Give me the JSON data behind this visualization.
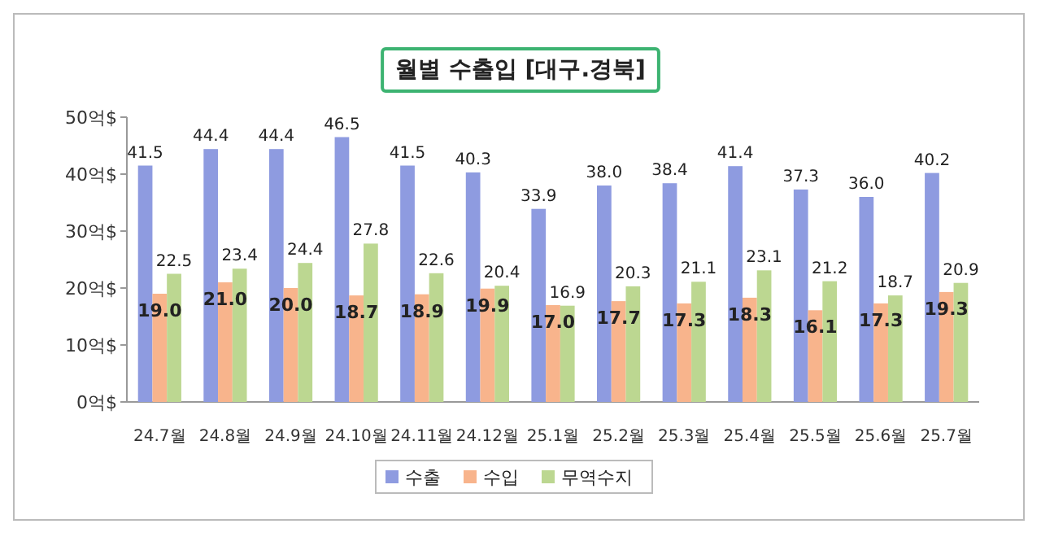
{
  "chart_data": {
    "type": "bar",
    "title": "월별 수출입 [대구.경북]",
    "categories": [
      "24.7월",
      "24.8월",
      "24.9월",
      "24.10월",
      "24.11월",
      "24.12월",
      "25.1월",
      "25.2월",
      "25.3월",
      "25.4월",
      "25.5월",
      "25.6월",
      "25.7월"
    ],
    "series": [
      {
        "name": "수출",
        "color": "#8e9be0",
        "values": [
          41.5,
          44.4,
          44.4,
          46.5,
          41.5,
          40.3,
          33.9,
          38.0,
          38.4,
          41.4,
          37.3,
          36.0,
          40.2
        ],
        "value_labels": [
          "41.5",
          "44.4",
          "44.4",
          "46.5",
          "41.5",
          "40.3",
          "33.9",
          "38.0",
          "38.4",
          "41.4",
          "37.3",
          "36.0",
          "40.2"
        ]
      },
      {
        "name": "수입",
        "color": "#f8b48c",
        "values": [
          19.0,
          21.0,
          20.0,
          18.7,
          18.9,
          19.9,
          17.0,
          17.7,
          17.3,
          18.3,
          16.1,
          17.3,
          19.3
        ],
        "value_labels": [
          "19.0",
          "21.0",
          "20.0",
          "18.7",
          "18.9",
          "19.9",
          "17.0",
          "17.7",
          "17.3",
          "18.3",
          "16.1",
          "17.3",
          "19.3"
        ]
      },
      {
        "name": "무역수지",
        "color": "#bcd791",
        "values": [
          22.5,
          23.4,
          24.4,
          27.8,
          22.6,
          20.4,
          16.9,
          20.3,
          21.1,
          23.1,
          21.2,
          18.7,
          20.9
        ],
        "value_labels": [
          "22.5",
          "23.4",
          "24.4",
          "27.8",
          "22.6",
          "20.4",
          "16.9",
          "20.3",
          "21.1",
          "23.1",
          "21.2",
          "18.7",
          "20.9"
        ]
      }
    ],
    "ylim": [
      0,
      50
    ],
    "yticks": [
      {
        "value": 0,
        "label": "0억$"
      },
      {
        "value": 10,
        "label": "10억$"
      },
      {
        "value": 20,
        "label": "20억$"
      },
      {
        "value": 30,
        "label": "30억$"
      },
      {
        "value": 40,
        "label": "40억$"
      },
      {
        "value": 50,
        "label": "50억$"
      }
    ],
    "grid": false,
    "legend": "bottom"
  }
}
